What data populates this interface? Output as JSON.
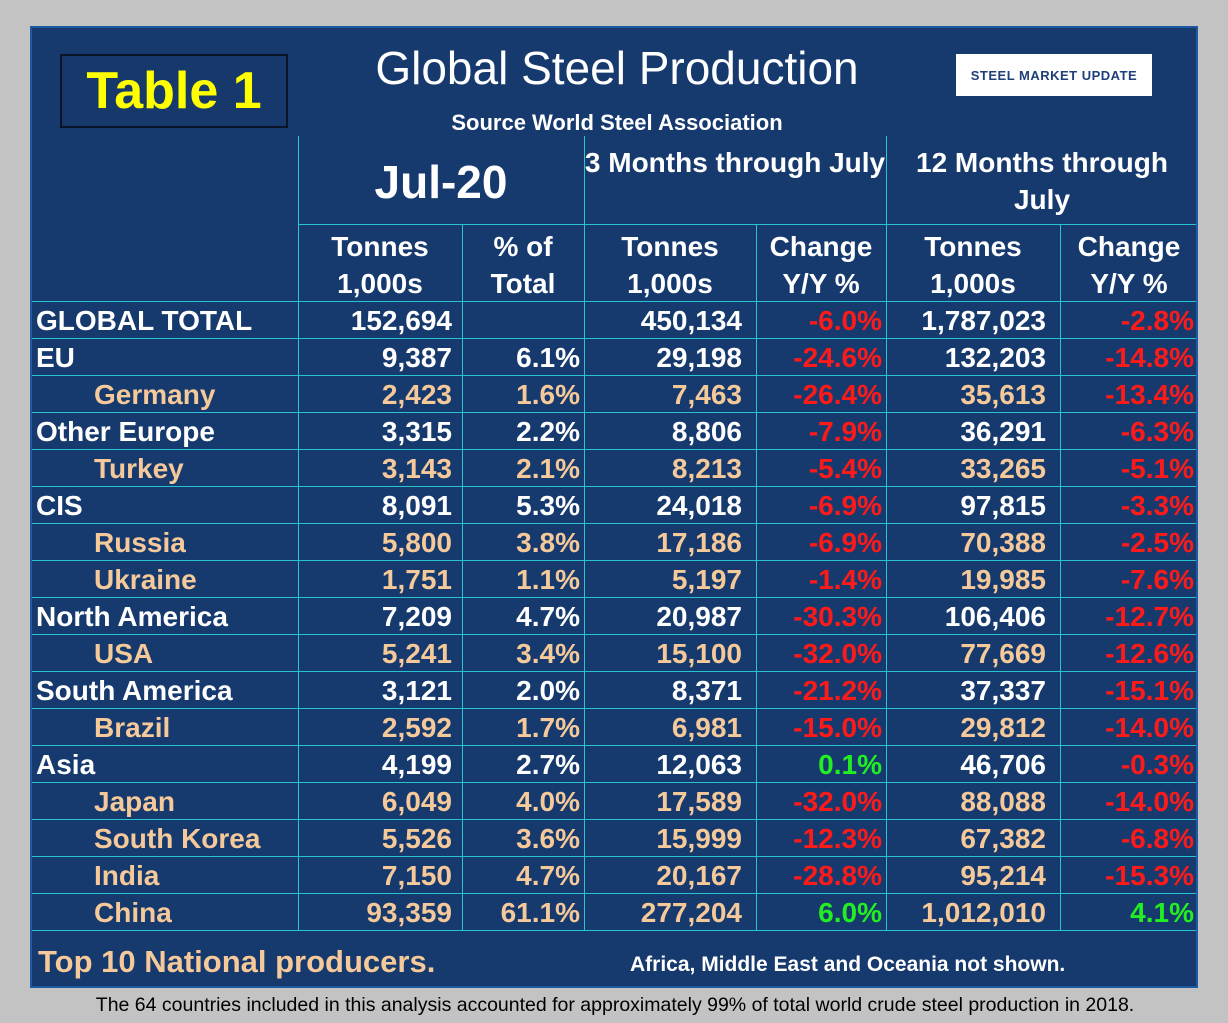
{
  "table_label": "Table 1",
  "title": "Global Steel Production",
  "source": "Source World Steel Association",
  "logo_text": "STEEL MARKET UPDATE",
  "headers": {
    "month": "Jul-20",
    "three_month": "3 Months through July",
    "twelve_month": "12 Months through July",
    "col_tonnes": "Tonnes 1,000s",
    "col_pct_total": "% of Total",
    "col_change": "Change Y/Y %"
  },
  "rows": [
    {
      "name": "GLOBAL TOTAL",
      "sub": false,
      "jul_tonnes": "152,694",
      "jul_pct": "",
      "m3_tonnes": "450,134",
      "m3_change": "-6.0%",
      "m12_tonnes": "1,787,023",
      "m12_change": "-2.8%"
    },
    {
      "name": "EU",
      "sub": false,
      "jul_tonnes": "9,387",
      "jul_pct": "6.1%",
      "m3_tonnes": "29,198",
      "m3_change": "-24.6%",
      "m12_tonnes": "132,203",
      "m12_change": "-14.8%"
    },
    {
      "name": "Germany",
      "sub": true,
      "jul_tonnes": "2,423",
      "jul_pct": "1.6%",
      "m3_tonnes": "7,463",
      "m3_change": "-26.4%",
      "m12_tonnes": "35,613",
      "m12_change": "-13.4%"
    },
    {
      "name": "Other Europe",
      "sub": false,
      "jul_tonnes": "3,315",
      "jul_pct": "2.2%",
      "m3_tonnes": "8,806",
      "m3_change": "-7.9%",
      "m12_tonnes": "36,291",
      "m12_change": "-6.3%"
    },
    {
      "name": "Turkey",
      "sub": true,
      "jul_tonnes": "3,143",
      "jul_pct": "2.1%",
      "m3_tonnes": "8,213",
      "m3_change": "-5.4%",
      "m12_tonnes": "33,265",
      "m12_change": "-5.1%"
    },
    {
      "name": "CIS",
      "sub": false,
      "jul_tonnes": "8,091",
      "jul_pct": "5.3%",
      "m3_tonnes": "24,018",
      "m3_change": "-6.9%",
      "m12_tonnes": "97,815",
      "m12_change": "-3.3%"
    },
    {
      "name": "Russia",
      "sub": true,
      "jul_tonnes": "5,800",
      "jul_pct": "3.8%",
      "m3_tonnes": "17,186",
      "m3_change": "-6.9%",
      "m12_tonnes": "70,388",
      "m12_change": "-2.5%"
    },
    {
      "name": "Ukraine",
      "sub": true,
      "jul_tonnes": "1,751",
      "jul_pct": "1.1%",
      "m3_tonnes": "5,197",
      "m3_change": "-1.4%",
      "m12_tonnes": "19,985",
      "m12_change": "-7.6%"
    },
    {
      "name": "North America",
      "sub": false,
      "jul_tonnes": "7,209",
      "jul_pct": "4.7%",
      "m3_tonnes": "20,987",
      "m3_change": "-30.3%",
      "m12_tonnes": "106,406",
      "m12_change": "-12.7%"
    },
    {
      "name": "USA",
      "sub": true,
      "jul_tonnes": "5,241",
      "jul_pct": "3.4%",
      "m3_tonnes": "15,100",
      "m3_change": "-32.0%",
      "m12_tonnes": "77,669",
      "m12_change": "-12.6%"
    },
    {
      "name": "South America",
      "sub": false,
      "jul_tonnes": "3,121",
      "jul_pct": "2.0%",
      "m3_tonnes": "8,371",
      "m3_change": "-21.2%",
      "m12_tonnes": "37,337",
      "m12_change": "-15.1%"
    },
    {
      "name": "Brazil",
      "sub": true,
      "jul_tonnes": "2,592",
      "jul_pct": "1.7%",
      "m3_tonnes": "6,981",
      "m3_change": "-15.0%",
      "m12_tonnes": "29,812",
      "m12_change": "-14.0%"
    },
    {
      "name": "Asia",
      "sub": false,
      "jul_tonnes": "4,199",
      "jul_pct": "2.7%",
      "m3_tonnes": "12,063",
      "m3_change": "0.1%",
      "m12_tonnes": "46,706",
      "m12_change": "-0.3%"
    },
    {
      "name": "Japan",
      "sub": true,
      "jul_tonnes": "6,049",
      "jul_pct": "4.0%",
      "m3_tonnes": "17,589",
      "m3_change": "-32.0%",
      "m12_tonnes": "88,088",
      "m12_change": "-14.0%"
    },
    {
      "name": "South Korea",
      "sub": true,
      "jul_tonnes": "5,526",
      "jul_pct": "3.6%",
      "m3_tonnes": "15,999",
      "m3_change": "-12.3%",
      "m12_tonnes": "67,382",
      "m12_change": "-6.8%"
    },
    {
      "name": "India",
      "sub": true,
      "jul_tonnes": "7,150",
      "jul_pct": "4.7%",
      "m3_tonnes": "20,167",
      "m3_change": "-28.8%",
      "m12_tonnes": "95,214",
      "m12_change": "-15.3%"
    },
    {
      "name": "China",
      "sub": true,
      "jul_tonnes": "93,359",
      "jul_pct": "61.1%",
      "m3_tonnes": "277,204",
      "m3_change": "6.0%",
      "m12_tonnes": "1,012,010",
      "m12_change": "4.1%"
    }
  ],
  "footer_left": "Top 10 National producers.",
  "footer_right": "Africa, Middle East and Oceania not shown.",
  "caption": "The 64 countries included in this analysis accounted for approximately 99% of total world crude steel production in 2018.",
  "colors": {
    "panel": "#173a6e",
    "grid": "#28c4d0",
    "negative": "#ff1a1a",
    "positive": "#22ee22",
    "subregion": "#f5c99a",
    "label": "#ffff00"
  }
}
